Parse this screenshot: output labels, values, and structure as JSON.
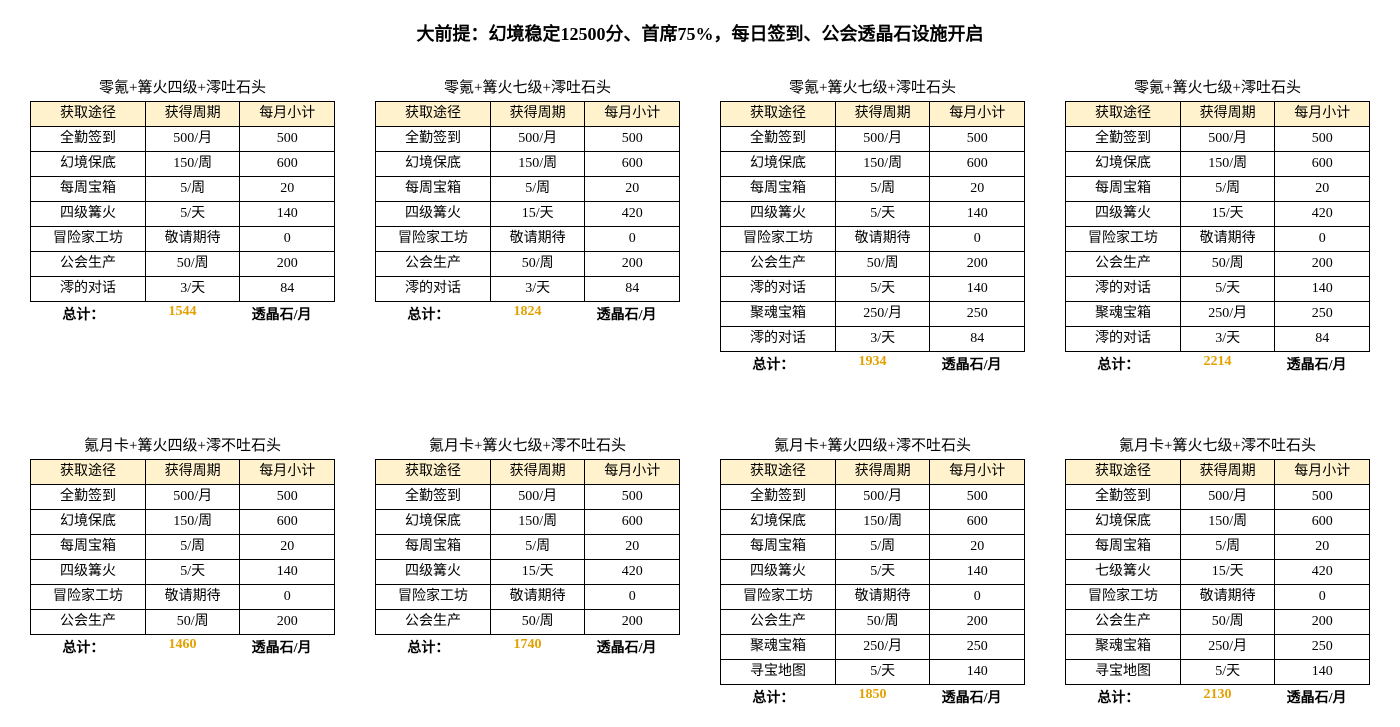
{
  "title": "大前提：幻境稳定12500分、首席75%，每日签到、公会透晶石设施开启",
  "columns": [
    "获取途径",
    "获得周期",
    "每月小计"
  ],
  "totals_label": "总计：",
  "totals_unit": "透晶石/月",
  "header_bg": "#fff2cc",
  "total_color": "#e2a100",
  "border_color": "#000000",
  "tables": [
    {
      "title": "零氪+篝火四级+澪吐石头",
      "rows": [
        [
          "全勤签到",
          "500/月",
          "500"
        ],
        [
          "幻境保底",
          "150/周",
          "600"
        ],
        [
          "每周宝箱",
          "5/周",
          "20"
        ],
        [
          "四级篝火",
          "5/天",
          "140"
        ],
        [
          "冒险家工坊",
          "敬请期待",
          "0"
        ],
        [
          "公会生产",
          "50/周",
          "200"
        ],
        [
          "澪的对话",
          "3/天",
          "84"
        ]
      ],
      "total": "1544"
    },
    {
      "title": "零氪+篝火七级+澪吐石头",
      "rows": [
        [
          "全勤签到",
          "500/月",
          "500"
        ],
        [
          "幻境保底",
          "150/周",
          "600"
        ],
        [
          "每周宝箱",
          "5/周",
          "20"
        ],
        [
          "四级篝火",
          "15/天",
          "420"
        ],
        [
          "冒险家工坊",
          "敬请期待",
          "0"
        ],
        [
          "公会生产",
          "50/周",
          "200"
        ],
        [
          "澪的对话",
          "3/天",
          "84"
        ]
      ],
      "total": "1824"
    },
    {
      "title": "零氪+篝火七级+澪吐石头",
      "rows": [
        [
          "全勤签到",
          "500/月",
          "500"
        ],
        [
          "幻境保底",
          "150/周",
          "600"
        ],
        [
          "每周宝箱",
          "5/周",
          "20"
        ],
        [
          "四级篝火",
          "5/天",
          "140"
        ],
        [
          "冒险家工坊",
          "敬请期待",
          "0"
        ],
        [
          "公会生产",
          "50/周",
          "200"
        ],
        [
          "澪的对话",
          "5/天",
          "140"
        ],
        [
          "聚魂宝箱",
          "250/月",
          "250"
        ],
        [
          "澪的对话",
          "3/天",
          "84"
        ]
      ],
      "total": "1934"
    },
    {
      "title": "零氪+篝火七级+澪吐石头",
      "rows": [
        [
          "全勤签到",
          "500/月",
          "500"
        ],
        [
          "幻境保底",
          "150/周",
          "600"
        ],
        [
          "每周宝箱",
          "5/周",
          "20"
        ],
        [
          "四级篝火",
          "15/天",
          "420"
        ],
        [
          "冒险家工坊",
          "敬请期待",
          "0"
        ],
        [
          "公会生产",
          "50/周",
          "200"
        ],
        [
          "澪的对话",
          "5/天",
          "140"
        ],
        [
          "聚魂宝箱",
          "250/月",
          "250"
        ],
        [
          "澪的对话",
          "3/天",
          "84"
        ]
      ],
      "total": "2214"
    },
    {
      "title": "氪月卡+篝火四级+澪不吐石头",
      "rows": [
        [
          "全勤签到",
          "500/月",
          "500"
        ],
        [
          "幻境保底",
          "150/周",
          "600"
        ],
        [
          "每周宝箱",
          "5/周",
          "20"
        ],
        [
          "四级篝火",
          "5/天",
          "140"
        ],
        [
          "冒险家工坊",
          "敬请期待",
          "0"
        ],
        [
          "公会生产",
          "50/周",
          "200"
        ]
      ],
      "total": "1460"
    },
    {
      "title": "氪月卡+篝火七级+澪不吐石头",
      "rows": [
        [
          "全勤签到",
          "500/月",
          "500"
        ],
        [
          "幻境保底",
          "150/周",
          "600"
        ],
        [
          "每周宝箱",
          "5/周",
          "20"
        ],
        [
          "四级篝火",
          "15/天",
          "420"
        ],
        [
          "冒险家工坊",
          "敬请期待",
          "0"
        ],
        [
          "公会生产",
          "50/周",
          "200"
        ]
      ],
      "total": "1740"
    },
    {
      "title": "氪月卡+篝火四级+澪不吐石头",
      "rows": [
        [
          "全勤签到",
          "500/月",
          "500"
        ],
        [
          "幻境保底",
          "150/周",
          "600"
        ],
        [
          "每周宝箱",
          "5/周",
          "20"
        ],
        [
          "四级篝火",
          "5/天",
          "140"
        ],
        [
          "冒险家工坊",
          "敬请期待",
          "0"
        ],
        [
          "公会生产",
          "50/周",
          "200"
        ],
        [
          "聚魂宝箱",
          "250/月",
          "250"
        ],
        [
          "寻宝地图",
          "5/天",
          "140"
        ]
      ],
      "total": "1850"
    },
    {
      "title": "氪月卡+篝火七级+澪不吐石头",
      "rows": [
        [
          "全勤签到",
          "500/月",
          "500"
        ],
        [
          "幻境保底",
          "150/周",
          "600"
        ],
        [
          "每周宝箱",
          "5/周",
          "20"
        ],
        [
          "七级篝火",
          "15/天",
          "420"
        ],
        [
          "冒险家工坊",
          "敬请期待",
          "0"
        ],
        [
          "公会生产",
          "50/周",
          "200"
        ],
        [
          "聚魂宝箱",
          "250/月",
          "250"
        ],
        [
          "寻宝地图",
          "5/天",
          "140"
        ]
      ],
      "total": "2130"
    }
  ]
}
